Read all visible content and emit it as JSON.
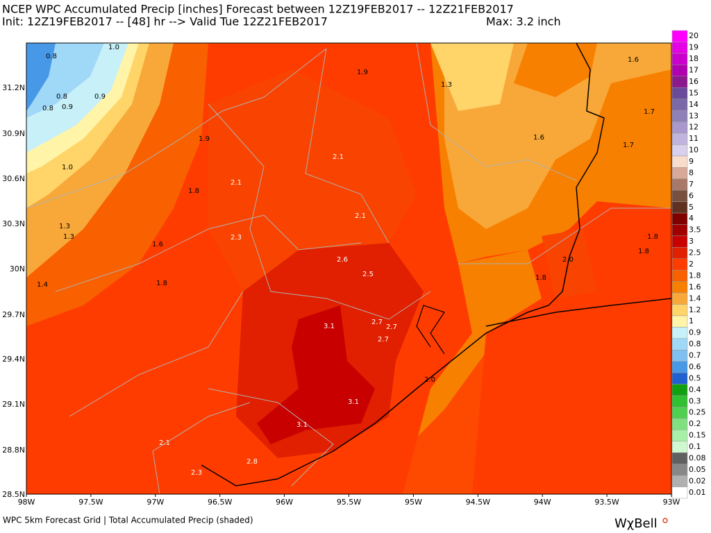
{
  "header": {
    "title": "NCEP WPC Accumulated Precip [inches] Forecast between 12Z19FEB2017 -- 12Z21FEB2017",
    "init": "Init: 12Z19FEB2017 -- [48] hr --> Valid Tue 12Z21FEB2017",
    "max": "Max: 3.2 inch"
  },
  "lat_labels": [
    "31.2N",
    "30.9N",
    "30.6N",
    "30.3N",
    "30N",
    "29.7N",
    "29.4N",
    "29.1N",
    "28.8N",
    "28.5N"
  ],
  "lon_labels": [
    "98W",
    "97.5W",
    "97W",
    "96.5W",
    "96W",
    "95.5W",
    "95W",
    "94.5W",
    "94W",
    "93.5W",
    "93W"
  ],
  "map_labels": [
    "0.8",
    "1.0",
    "0.8",
    "0.9",
    "0.8",
    "0.9",
    "1.0",
    "1.9",
    "1.8",
    "1.3",
    "1.3",
    "1.6",
    "1.4",
    "1.8",
    "2.1",
    "2.3",
    "1.9",
    "2.1",
    "2.1",
    "2.6",
    "2.5",
    "3.1",
    "2.7",
    "2.7",
    "2.7",
    "3.1",
    "3.1",
    "2.8",
    "2.3",
    "2.1",
    "2.0",
    "1.3",
    "1.6",
    "1.7",
    "1.7",
    "1.6",
    "1.8",
    "1.8",
    "2.0",
    "1.8"
  ],
  "legend": [
    {
      "value": 20,
      "color": "#ff00ff"
    },
    {
      "value": 19,
      "color": "#e600e6"
    },
    {
      "value": 18,
      "color": "#cc00cc"
    },
    {
      "value": 17,
      "color": "#b000b0"
    },
    {
      "value": 16,
      "color": "#8c1a8c"
    },
    {
      "value": 15,
      "color": "#6a4a9a"
    },
    {
      "value": 14,
      "color": "#7a68a8"
    },
    {
      "value": 13,
      "color": "#9080b8"
    },
    {
      "value": 12,
      "color": "#a898cc"
    },
    {
      "value": 11,
      "color": "#c0b4dc"
    },
    {
      "value": 10,
      "color": "#d8d0ec"
    },
    {
      "value": 9,
      "color": "#f8dccc"
    },
    {
      "value": 8,
      "color": "#d8a898"
    },
    {
      "value": 7,
      "color": "#a87868"
    },
    {
      "value": 6,
      "color": "#785040"
    },
    {
      "value": 5,
      "color": "#603020"
    },
    {
      "value": 4,
      "color": "#800000"
    },
    {
      "value": 3.5,
      "color": "#a00000"
    },
    {
      "value": 3,
      "color": "#c80000"
    },
    {
      "value": 2.5,
      "color": "#e02000"
    },
    {
      "value": 2,
      "color": "#ff3c00"
    },
    {
      "value": 1.8,
      "color": "#f86000"
    },
    {
      "value": 1.6,
      "color": "#f88000"
    },
    {
      "value": 1.4,
      "color": "#f8a838"
    },
    {
      "value": 1.2,
      "color": "#ffd468"
    },
    {
      "value": 1,
      "color": "#fff4a8"
    },
    {
      "value": 0.9,
      "color": "#c8f0f8"
    },
    {
      "value": 0.8,
      "color": "#a0d8f8"
    },
    {
      "value": 0.7,
      "color": "#80c0f0"
    },
    {
      "value": 0.6,
      "color": "#4898e8"
    },
    {
      "value": 0.5,
      "color": "#2060d0"
    },
    {
      "value": 0.4,
      "color": "#10a010"
    },
    {
      "value": 0.3,
      "color": "#30c030"
    },
    {
      "value": 0.25,
      "color": "#50d050"
    },
    {
      "value": 0.2,
      "color": "#80e080"
    },
    {
      "value": 0.15,
      "color": "#a8f0a8"
    },
    {
      "value": 0.1,
      "color": "#d0f8d0"
    },
    {
      "value": 0.08,
      "color": "#606060"
    },
    {
      "value": 0.05,
      "color": "#888888"
    },
    {
      "value": 0.02,
      "color": "#b0b0b0"
    },
    {
      "value": 0.01,
      "color": "#ffffff"
    }
  ],
  "footer": {
    "text": "WPC 5km Forecast Grid | Total Accumulated Precip (shaded)",
    "brand": "WχBell"
  }
}
